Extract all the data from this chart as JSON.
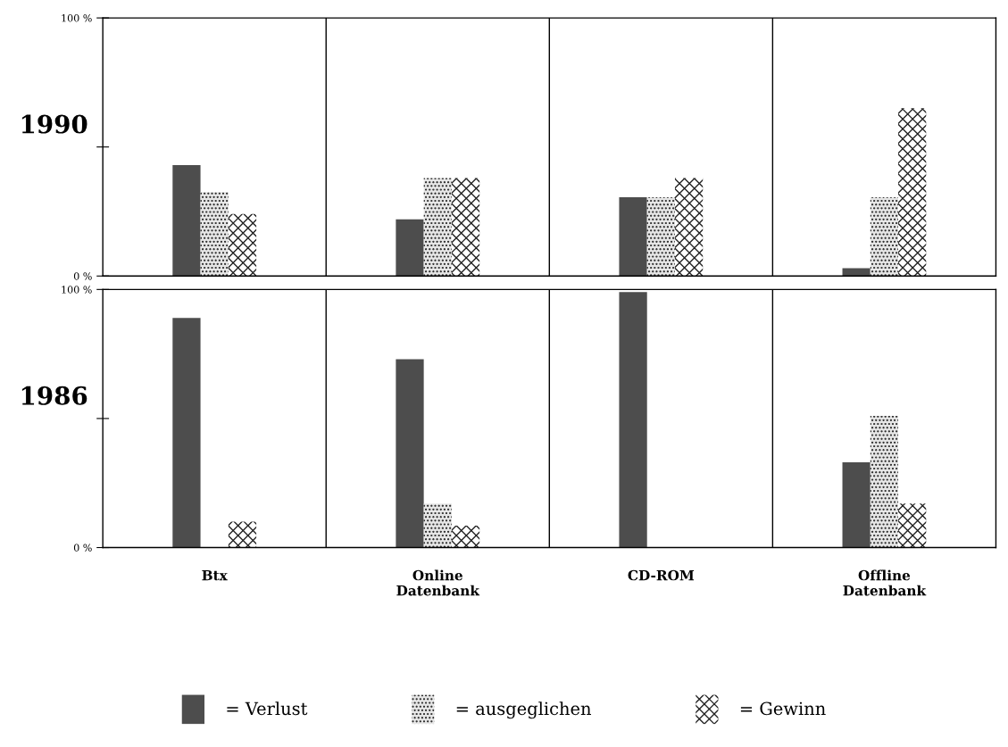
{
  "chart_data": [
    {
      "type": "bar",
      "ylabel": "1990",
      "categories": [
        null,
        null,
        null,
        null
      ],
      "tick_labels": "y",
      "ylim": [
        0,
        100
      ],
      "yticks": [
        {
          "value": 0,
          "label": "0 %"
        },
        {
          "value": 50,
          "label": null
        },
        {
          "value": 100,
          "label": "100 %"
        }
      ],
      "legend": "bottom",
      "series": [
        {
          "name": "= Verlust",
          "color": "#4d4d4d",
          "values": [
            43,
            22,
            30.5,
            3
          ]
        },
        {
          "name": "= ausgeglichen",
          "color": "#e6e6e6",
          "values": [
            32.5,
            38,
            30.5,
            30.5
          ]
        },
        {
          "name": "= Gewinn",
          "color": "#ffffff",
          "values": [
            24,
            38,
            38,
            65
          ]
        }
      ]
    },
    {
      "type": "bar",
      "ylabel": "1986",
      "categories": [
        "Btx",
        "Online\nDatenbank",
        "CD-ROM",
        "Offline\nDatenbank"
      ],
      "ylim": [
        0,
        100
      ],
      "yticks": [
        {
          "value": 0,
          "label": "0 %"
        },
        {
          "value": 50,
          "label": null
        },
        {
          "value": 100,
          "label": "100 %"
        }
      ],
      "series": [
        {
          "color": "#4d4d4d",
          "values": [
            89,
            73,
            99,
            33
          ]
        },
        {
          "color": "#e6e6e6",
          "values": [
            0,
            17,
            0,
            51
          ]
        },
        {
          "color": "#ffffff",
          "values": [
            10,
            8.5,
            0,
            17
          ]
        }
      ]
    }
  ]
}
